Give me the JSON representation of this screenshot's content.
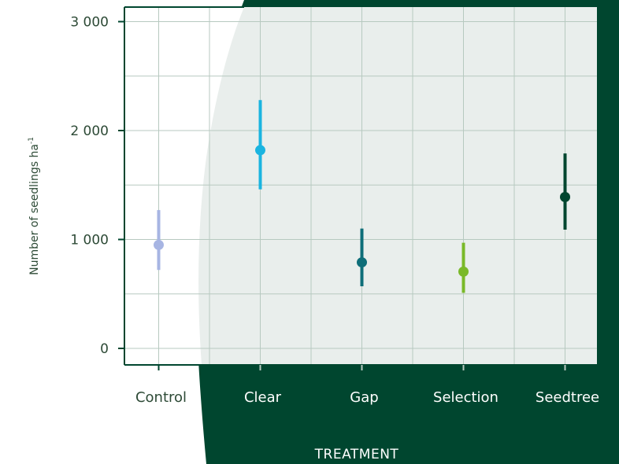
{
  "colors": {
    "background_dark": "#00462f",
    "panel_light": "#e9eeec",
    "grid": "#b7c9c0",
    "axis": "#00462f",
    "text_dark": "#2d4a36",
    "text_on_dark": "#ffffff"
  },
  "chart_data": {
    "type": "scatter",
    "style": "point-with-error-bars",
    "title": "",
    "xlabel": "TREATMENT",
    "ylabel": "Number of seedlings ha",
    "ylabel_superscript": "-1",
    "ylim": [
      -150,
      3150
    ],
    "yticks": [
      0,
      1000,
      2000,
      3000
    ],
    "ytick_labels": [
      "0",
      "1 000",
      "2 000",
      "3 000"
    ],
    "grid": true,
    "categories": [
      "Control",
      "Clear",
      "Gap",
      "Selection",
      "Seedtree"
    ],
    "points": [
      {
        "category": "Control",
        "value": 950,
        "lower": 720,
        "upper": 1270,
        "color": "#a7b5e3"
      },
      {
        "category": "Clear",
        "value": 1820,
        "lower": 1460,
        "upper": 2280,
        "color": "#1ab4e0"
      },
      {
        "category": "Gap",
        "value": 790,
        "lower": 570,
        "upper": 1100,
        "color": "#0e6e79"
      },
      {
        "category": "Selection",
        "value": 705,
        "lower": 510,
        "upper": 970,
        "color": "#7ab929"
      },
      {
        "category": "Seedtree",
        "value": 1390,
        "lower": 1090,
        "upper": 1790,
        "color": "#00462f"
      }
    ]
  }
}
